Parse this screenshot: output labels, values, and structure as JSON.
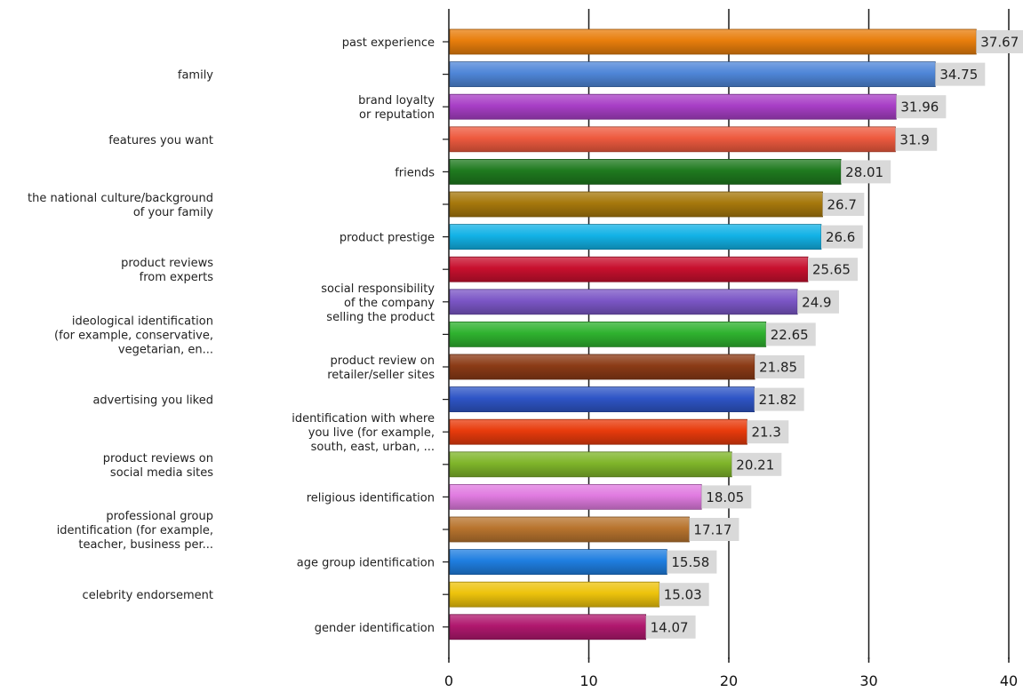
{
  "chart_data": {
    "type": "bar",
    "orientation": "horizontal",
    "title": "",
    "xlabel": "",
    "ylabel": "",
    "xlim": [
      0,
      40
    ],
    "x_ticks": [
      "0",
      "10",
      "20",
      "30",
      "40"
    ],
    "grid": true,
    "categories": [
      "past experience",
      "family",
      "brand loyalty\nor reputation",
      "features you want",
      "friends",
      "the national culture/background\nof your family",
      "product prestige",
      "product reviews\nfrom experts",
      "social responsibility\nof the company\nselling the product",
      "ideological identification\n(for example, conservative,\nvegetarian, en...",
      "product review on\nretailer/seller sites",
      "advertising you liked",
      "identification with where\nyou live (for example,\nsouth, east, urban, ...",
      "product reviews on\nsocial media sites",
      "religious identification",
      "professional group\nidentification (for example,\nteacher, business per...",
      "age group identification",
      "celebrity endorsement",
      "gender identification"
    ],
    "values": [
      37.67,
      34.75,
      31.96,
      31.9,
      28.01,
      26.7,
      26.6,
      25.65,
      24.9,
      22.65,
      21.85,
      21.82,
      21.3,
      20.21,
      18.05,
      17.17,
      15.58,
      15.03,
      14.07
    ],
    "value_labels": [
      "37.67",
      "34.75",
      "31.96",
      "31.9",
      "28.01",
      "26.7",
      "26.6",
      "25.65",
      "24.9",
      "22.65",
      "21.85",
      "21.82",
      "21.3",
      "20.21",
      "18.05",
      "17.17",
      "15.58",
      "15.03",
      "14.07"
    ],
    "colors": [
      "#e87e0c",
      "#4f86d8",
      "#a83fc6",
      "#ee5a3f",
      "#1f7a1f",
      "#a6780c",
      "#12b2e6",
      "#c8102e",
      "#7b56c6",
      "#2fb22f",
      "#8b3b16",
      "#2e55c6",
      "#e83b0c",
      "#7fb52a",
      "#e07be0",
      "#b8742e",
      "#1f7ee0",
      "#edc30c",
      "#b0186e"
    ]
  }
}
